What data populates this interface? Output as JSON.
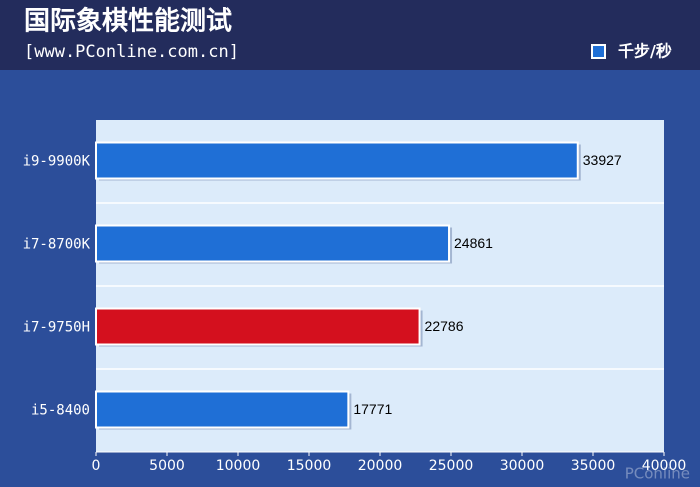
{
  "chart_data": {
    "type": "bar",
    "orientation": "horizontal",
    "title": "国际象棋性能测试",
    "subtitle": "[www.PConline.com.cn]",
    "watermark": "PConline",
    "categories": [
      "i9-9900K",
      "i7-8700K",
      "i7-9750H",
      "i5-8400"
    ],
    "series": [
      {
        "name": "千步/秒",
        "color": "#1f6fd6",
        "values": [
          33927,
          24861,
          22786,
          17771
        ]
      }
    ],
    "bar_colors": [
      "#1f6fd6",
      "#1f6fd6",
      "#d4101e",
      "#1f6fd6"
    ],
    "xlim": [
      0,
      40000
    ],
    "xticks": [
      0,
      5000,
      10000,
      15000,
      20000,
      25000,
      30000,
      35000,
      40000
    ],
    "legend": "top-right"
  }
}
